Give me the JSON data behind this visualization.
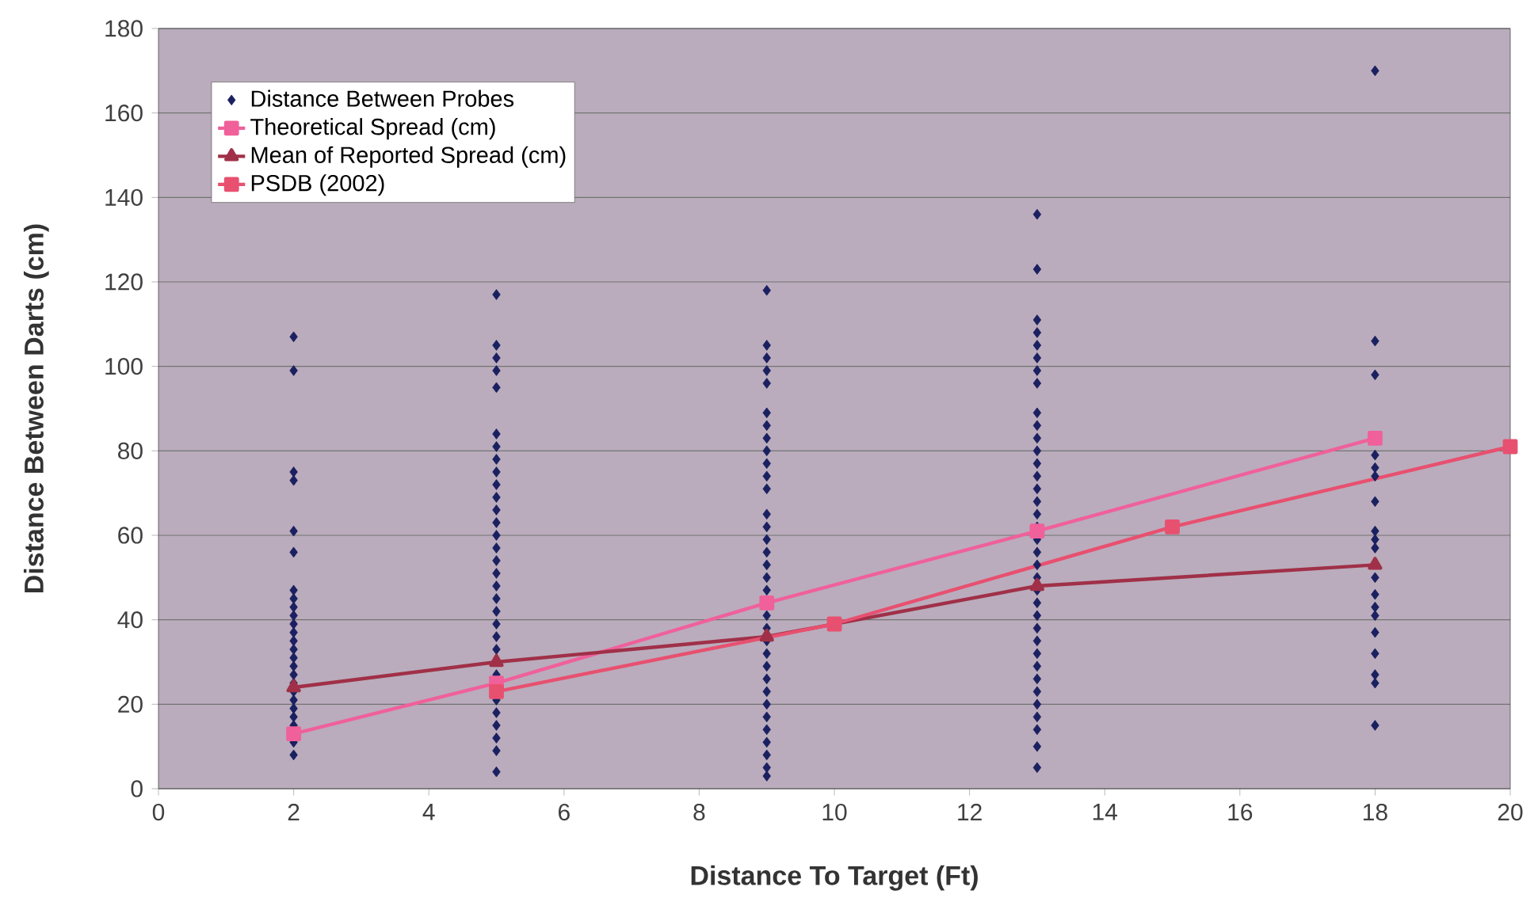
{
  "chart_data": {
    "type": "line",
    "xlabel": "Distance To Target (Ft)",
    "ylabel": "Distance Between Darts (cm)",
    "xlim": [
      0,
      20
    ],
    "xticks": [
      0,
      2,
      4,
      6,
      8,
      10,
      12,
      14,
      16,
      18,
      20
    ],
    "ylim": [
      0,
      180
    ],
    "yticks": [
      0,
      20,
      40,
      60,
      80,
      100,
      120,
      140,
      160,
      180
    ],
    "grid": "y",
    "legend": "top left",
    "line_style": "solid",
    "series": [
      {
        "name": "Distance Between Probes",
        "type": "scatter",
        "marker": "diamond",
        "color": "#1a2060",
        "x": [
          2,
          2,
          2,
          2,
          2,
          2,
          2,
          2,
          2,
          2,
          2,
          2,
          2,
          2,
          2,
          2,
          2,
          2,
          2,
          2,
          2,
          2,
          2,
          2,
          2,
          5,
          5,
          5,
          5,
          5,
          5,
          5,
          5,
          5,
          5,
          5,
          5,
          5,
          5,
          5,
          5,
          5,
          5,
          5,
          5,
          5,
          5,
          5,
          5,
          5,
          5,
          5,
          5,
          5,
          5,
          9,
          9,
          9,
          9,
          9,
          9,
          9,
          9,
          9,
          9,
          9,
          9,
          9,
          9,
          9,
          9,
          9,
          9,
          9,
          9,
          9,
          9,
          9,
          9,
          9,
          9,
          9,
          9,
          9,
          9,
          9,
          9,
          9,
          13,
          13,
          13,
          13,
          13,
          13,
          13,
          13,
          13,
          13,
          13,
          13,
          13,
          13,
          13,
          13,
          13,
          13,
          13,
          13,
          13,
          13,
          13,
          13,
          13,
          13,
          13,
          13,
          13,
          13,
          13,
          13,
          13,
          13,
          13,
          13,
          18,
          18,
          18,
          18,
          18,
          18,
          18,
          18,
          18,
          18,
          18,
          18,
          18,
          18,
          18,
          18,
          18,
          18,
          18
        ],
        "values": [
          107,
          99,
          75,
          73,
          61,
          56,
          47,
          45,
          43,
          41,
          39,
          37,
          35,
          33,
          31,
          29,
          27,
          25,
          23,
          21,
          19,
          17,
          15,
          11,
          8,
          117,
          105,
          102,
          99,
          95,
          84,
          81,
          78,
          75,
          72,
          69,
          66,
          63,
          60,
          57,
          54,
          51,
          48,
          45,
          42,
          39,
          36,
          33,
          27,
          21,
          18,
          15,
          12,
          9,
          4,
          118,
          105,
          102,
          99,
          96,
          89,
          86,
          83,
          80,
          77,
          74,
          71,
          65,
          62,
          59,
          56,
          53,
          50,
          47,
          41,
          38,
          35,
          32,
          29,
          26,
          23,
          20,
          17,
          14,
          11,
          8,
          5,
          3,
          136,
          123,
          111,
          108,
          105,
          102,
          99,
          96,
          89,
          86,
          83,
          80,
          77,
          74,
          71,
          68,
          65,
          62,
          59,
          56,
          53,
          50,
          47,
          44,
          41,
          38,
          35,
          32,
          29,
          26,
          23,
          20,
          17,
          14,
          10,
          5,
          170,
          106,
          98,
          79,
          76,
          74,
          68,
          61,
          59,
          57,
          50,
          46,
          43,
          41,
          37,
          32,
          27,
          25,
          15
        ]
      },
      {
        "name": "Theoretical Spread (cm)",
        "marker": "square",
        "color": "#f0609a",
        "x": [
          2,
          5,
          9,
          13,
          18
        ],
        "values": [
          13,
          25,
          44,
          61,
          83
        ]
      },
      {
        "name": "Mean of Reported Spread (cm)",
        "marker": "triangle",
        "color": "#a03048",
        "x": [
          2,
          5,
          9,
          13,
          18
        ],
        "values": [
          24,
          30,
          36,
          48,
          53
        ]
      },
      {
        "name": "PSDB (2002)",
        "marker": "square",
        "color": "#e85070",
        "x": [
          5,
          10,
          15,
          20
        ],
        "values": [
          23,
          39,
          62,
          81
        ]
      }
    ]
  }
}
